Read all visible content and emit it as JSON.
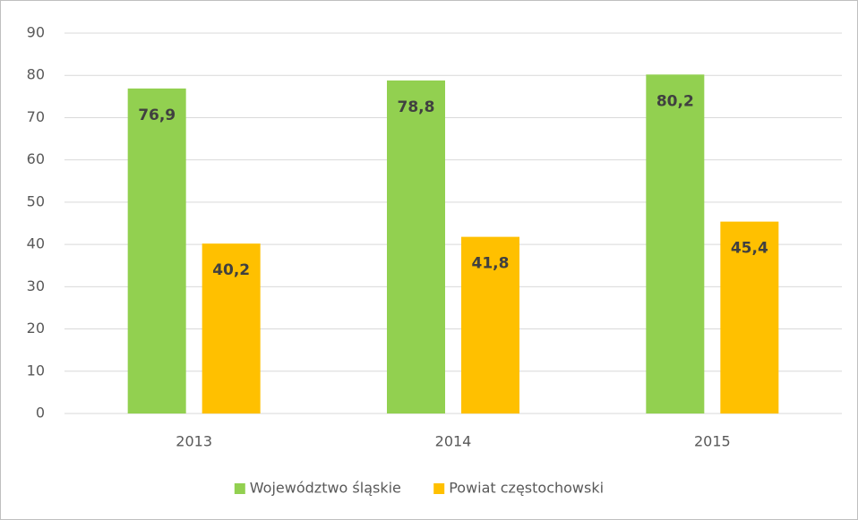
{
  "chart_data": {
    "type": "bar",
    "categories": [
      "2013",
      "2014",
      "2015"
    ],
    "series": [
      {
        "name": "Województwo śląskie",
        "color": "#92d050",
        "values": [
          76.9,
          78.8,
          80.2
        ],
        "value_labels": [
          "76,9",
          "78,8",
          "80,2"
        ]
      },
      {
        "name": "Powiat częstochowski",
        "color": "#ffc000",
        "values": [
          40.2,
          41.8,
          45.4
        ],
        "value_labels": [
          "40,2",
          "41,8",
          "45,4"
        ]
      }
    ],
    "ylim": [
      0,
      90
    ],
    "yticks": [
      0,
      10,
      20,
      30,
      40,
      50,
      60,
      70,
      80,
      90
    ],
    "grid": true,
    "legend": "bottom"
  }
}
